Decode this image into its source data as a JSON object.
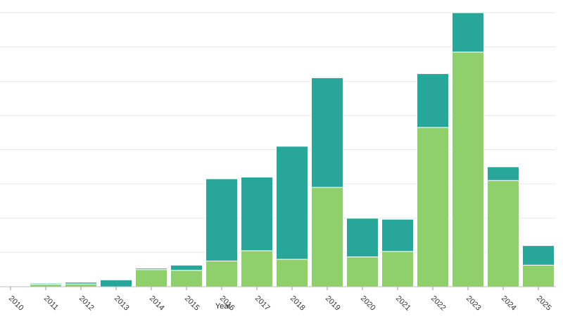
{
  "chart_data": {
    "type": "bar",
    "stacked": true,
    "xlabel": "Year",
    "ylabel": "",
    "title": "",
    "ylim": [
      0,
      8
    ],
    "grid": true,
    "categories": [
      "2010",
      "2011",
      "2012",
      "2013",
      "2014",
      "2015",
      "2016",
      "2017",
      "2018",
      "2019",
      "2020",
      "2021",
      "2022",
      "2023",
      "2024",
      "2025"
    ],
    "series": [
      {
        "color": "#8fcf6c",
        "values": [
          0,
          0.07,
          0.08,
          0,
          0.5,
          0.48,
          0.75,
          1.05,
          0.8,
          2.9,
          0.87,
          1.03,
          4.65,
          6.85,
          3.1,
          0.63
        ]
      },
      {
        "color": "#29a69a",
        "values": [
          0,
          0.03,
          0.05,
          0.2,
          0.04,
          0.15,
          2.4,
          2.15,
          3.3,
          3.2,
          1.13,
          0.94,
          1.57,
          1.15,
          0.4,
          0.57
        ]
      }
    ]
  }
}
